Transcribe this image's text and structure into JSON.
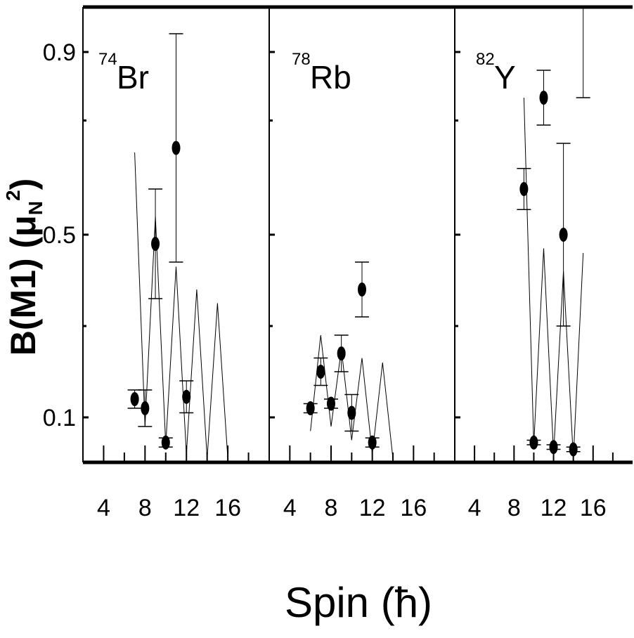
{
  "chart_data": {
    "type": "scatter",
    "ylabel": {
      "main": "B(M1) (μ",
      "sub": "N",
      "sup": "2",
      "close": ")"
    },
    "xlabel": "Spin (ħ)",
    "ylim": [
      0.0,
      0.9
    ],
    "yticks": [
      "0.1",
      "0.5",
      "0.9"
    ],
    "xlim": [
      2,
      20
    ],
    "xticks": [
      "4",
      "8",
      "12",
      "16"
    ],
    "panels": [
      {
        "id": "br74",
        "nuclide": {
          "mass": "74",
          "symbol": "Br"
        },
        "points": [
          {
            "x": 7,
            "y": 0.14,
            "err": 0.02
          },
          {
            "x": 8,
            "y": 0.12,
            "err": 0.04
          },
          {
            "x": 10,
            "y": 0.045,
            "err": 0.01
          },
          {
            "x": 11,
            "y": 0.69,
            "err": 0.25
          },
          {
            "x": 12,
            "y": 0.145,
            "err": 0.035
          },
          {
            "x": 9,
            "y": 0.48,
            "err": 0.12
          }
        ],
        "theory": [
          {
            "x": 7,
            "y": 0.68
          },
          {
            "x": 8,
            "y": 0.08
          },
          {
            "x": 9,
            "y": 0.54
          },
          {
            "x": 10,
            "y": 0.04
          },
          {
            "x": 11,
            "y": 0.43
          },
          {
            "x": 12,
            "y": 0.02
          },
          {
            "x": 13,
            "y": 0.38
          },
          {
            "x": 14,
            "y": 0.01
          },
          {
            "x": 15,
            "y": 0.35
          },
          {
            "x": 16,
            "y": 0.01
          }
        ]
      },
      {
        "id": "rb78",
        "nuclide": {
          "mass": "78",
          "symbol": "Rb"
        },
        "points": [
          {
            "x": 6,
            "y": 0.12,
            "err": 0.01
          },
          {
            "x": 7,
            "y": 0.2,
            "err": 0.03
          },
          {
            "x": 8,
            "y": 0.13,
            "err": 0.01
          },
          {
            "x": 9,
            "y": 0.24,
            "err": 0.04
          },
          {
            "x": 10,
            "y": 0.11,
            "err": 0.04
          },
          {
            "x": 11,
            "y": 0.38,
            "err": 0.06
          },
          {
            "x": 12,
            "y": 0.045,
            "err": 0.01
          }
        ],
        "theory": [
          {
            "x": 6,
            "y": 0.07
          },
          {
            "x": 7,
            "y": 0.28
          },
          {
            "x": 8,
            "y": 0.08
          },
          {
            "x": 9,
            "y": 0.25
          },
          {
            "x": 10,
            "y": 0.05
          },
          {
            "x": 11,
            "y": 0.23
          },
          {
            "x": 12,
            "y": 0.02
          },
          {
            "x": 13,
            "y": 0.22
          },
          {
            "x": 14,
            "y": 0.01
          }
        ]
      },
      {
        "id": "y82",
        "nuclide": {
          "mass": "82",
          "symbol": "Y"
        },
        "points": [
          {
            "x": 9,
            "y": 0.6,
            "err": 0.045
          },
          {
            "x": 10,
            "y": 0.045,
            "err": 0.005
          },
          {
            "x": 11,
            "y": 0.8,
            "err": 0.06
          },
          {
            "x": 12,
            "y": 0.035,
            "err": 0.005
          },
          {
            "x": 13,
            "y": 0.5,
            "err": 0.2
          },
          {
            "x": 14,
            "y": 0.03,
            "err": 0.005
          },
          {
            "x": 15,
            "y": 1.0,
            "err": 0.2
          }
        ],
        "theory": [
          {
            "x": 9,
            "y": 0.8
          },
          {
            "x": 10,
            "y": 0.04
          },
          {
            "x": 11,
            "y": 0.47
          },
          {
            "x": 12,
            "y": 0.02
          },
          {
            "x": 13,
            "y": 0.42
          },
          {
            "x": 14,
            "y": 0.01
          },
          {
            "x": 15,
            "y": 0.46
          }
        ]
      }
    ]
  }
}
